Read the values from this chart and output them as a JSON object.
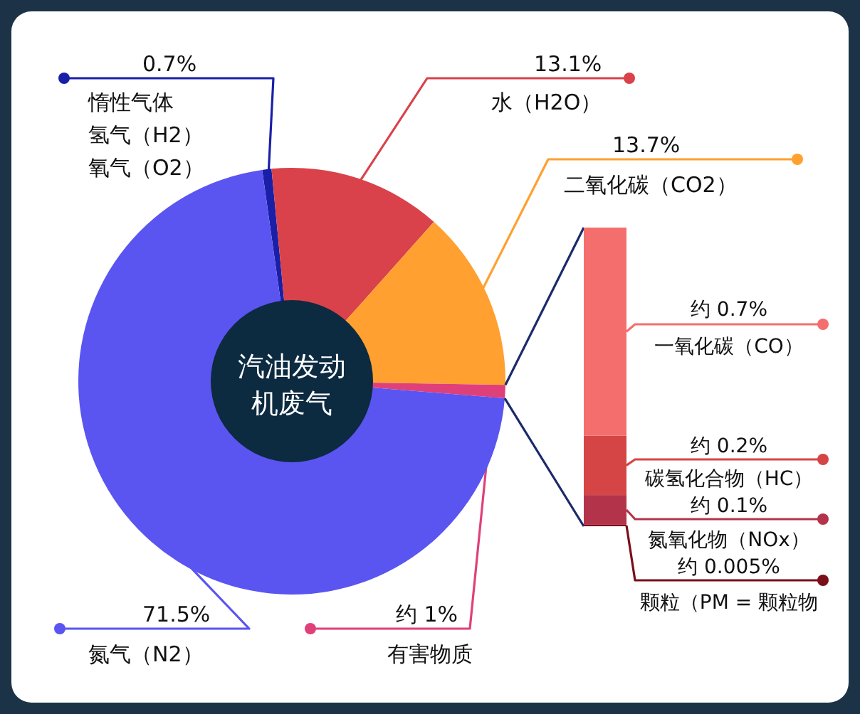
{
  "chart_data": [
    {
      "type": "donut",
      "title": "汽油发动机废气",
      "categories": [
        "惰性气体氢气（H2）氧气（O2）",
        "水（H2O）",
        "二氧化碳（CO2）",
        "有害物质",
        "氮气（N2）"
      ],
      "values": [
        0.7,
        13.1,
        13.7,
        1,
        71.5
      ],
      "value_labels": [
        "0.7%",
        "13.1%",
        "13.7%",
        "约 1%",
        "71.5%"
      ],
      "colors": [
        "#1a1fa8",
        "#d9424a",
        "#ffa030",
        "#e0407a",
        "#5a55f0"
      ]
    },
    {
      "type": "other",
      "series": [
        {
          "name": "颗粒（PM = 颗粒物",
          "color": "#7a0f1a",
          "values": [
            0.005
          ],
          "value_labels": [
            "约 0.005%"
          ]
        },
        {
          "name": "氮氧化物（NOx）",
          "color": "#b3344a",
          "values": [
            0.1
          ],
          "value_labels": [
            "约 0.1%"
          ]
        },
        {
          "name": "碳氢化合物（HC）",
          "color": "#d64545",
          "values": [
            0.2
          ],
          "value_labels": [
            "约 0.2%"
          ]
        },
        {
          "name": "一氧化碳（CO）",
          "color": "#f56e6e",
          "values": [
            0.7
          ],
          "value_labels": [
            "约 0.7%"
          ]
        }
      ]
    }
  ]
}
